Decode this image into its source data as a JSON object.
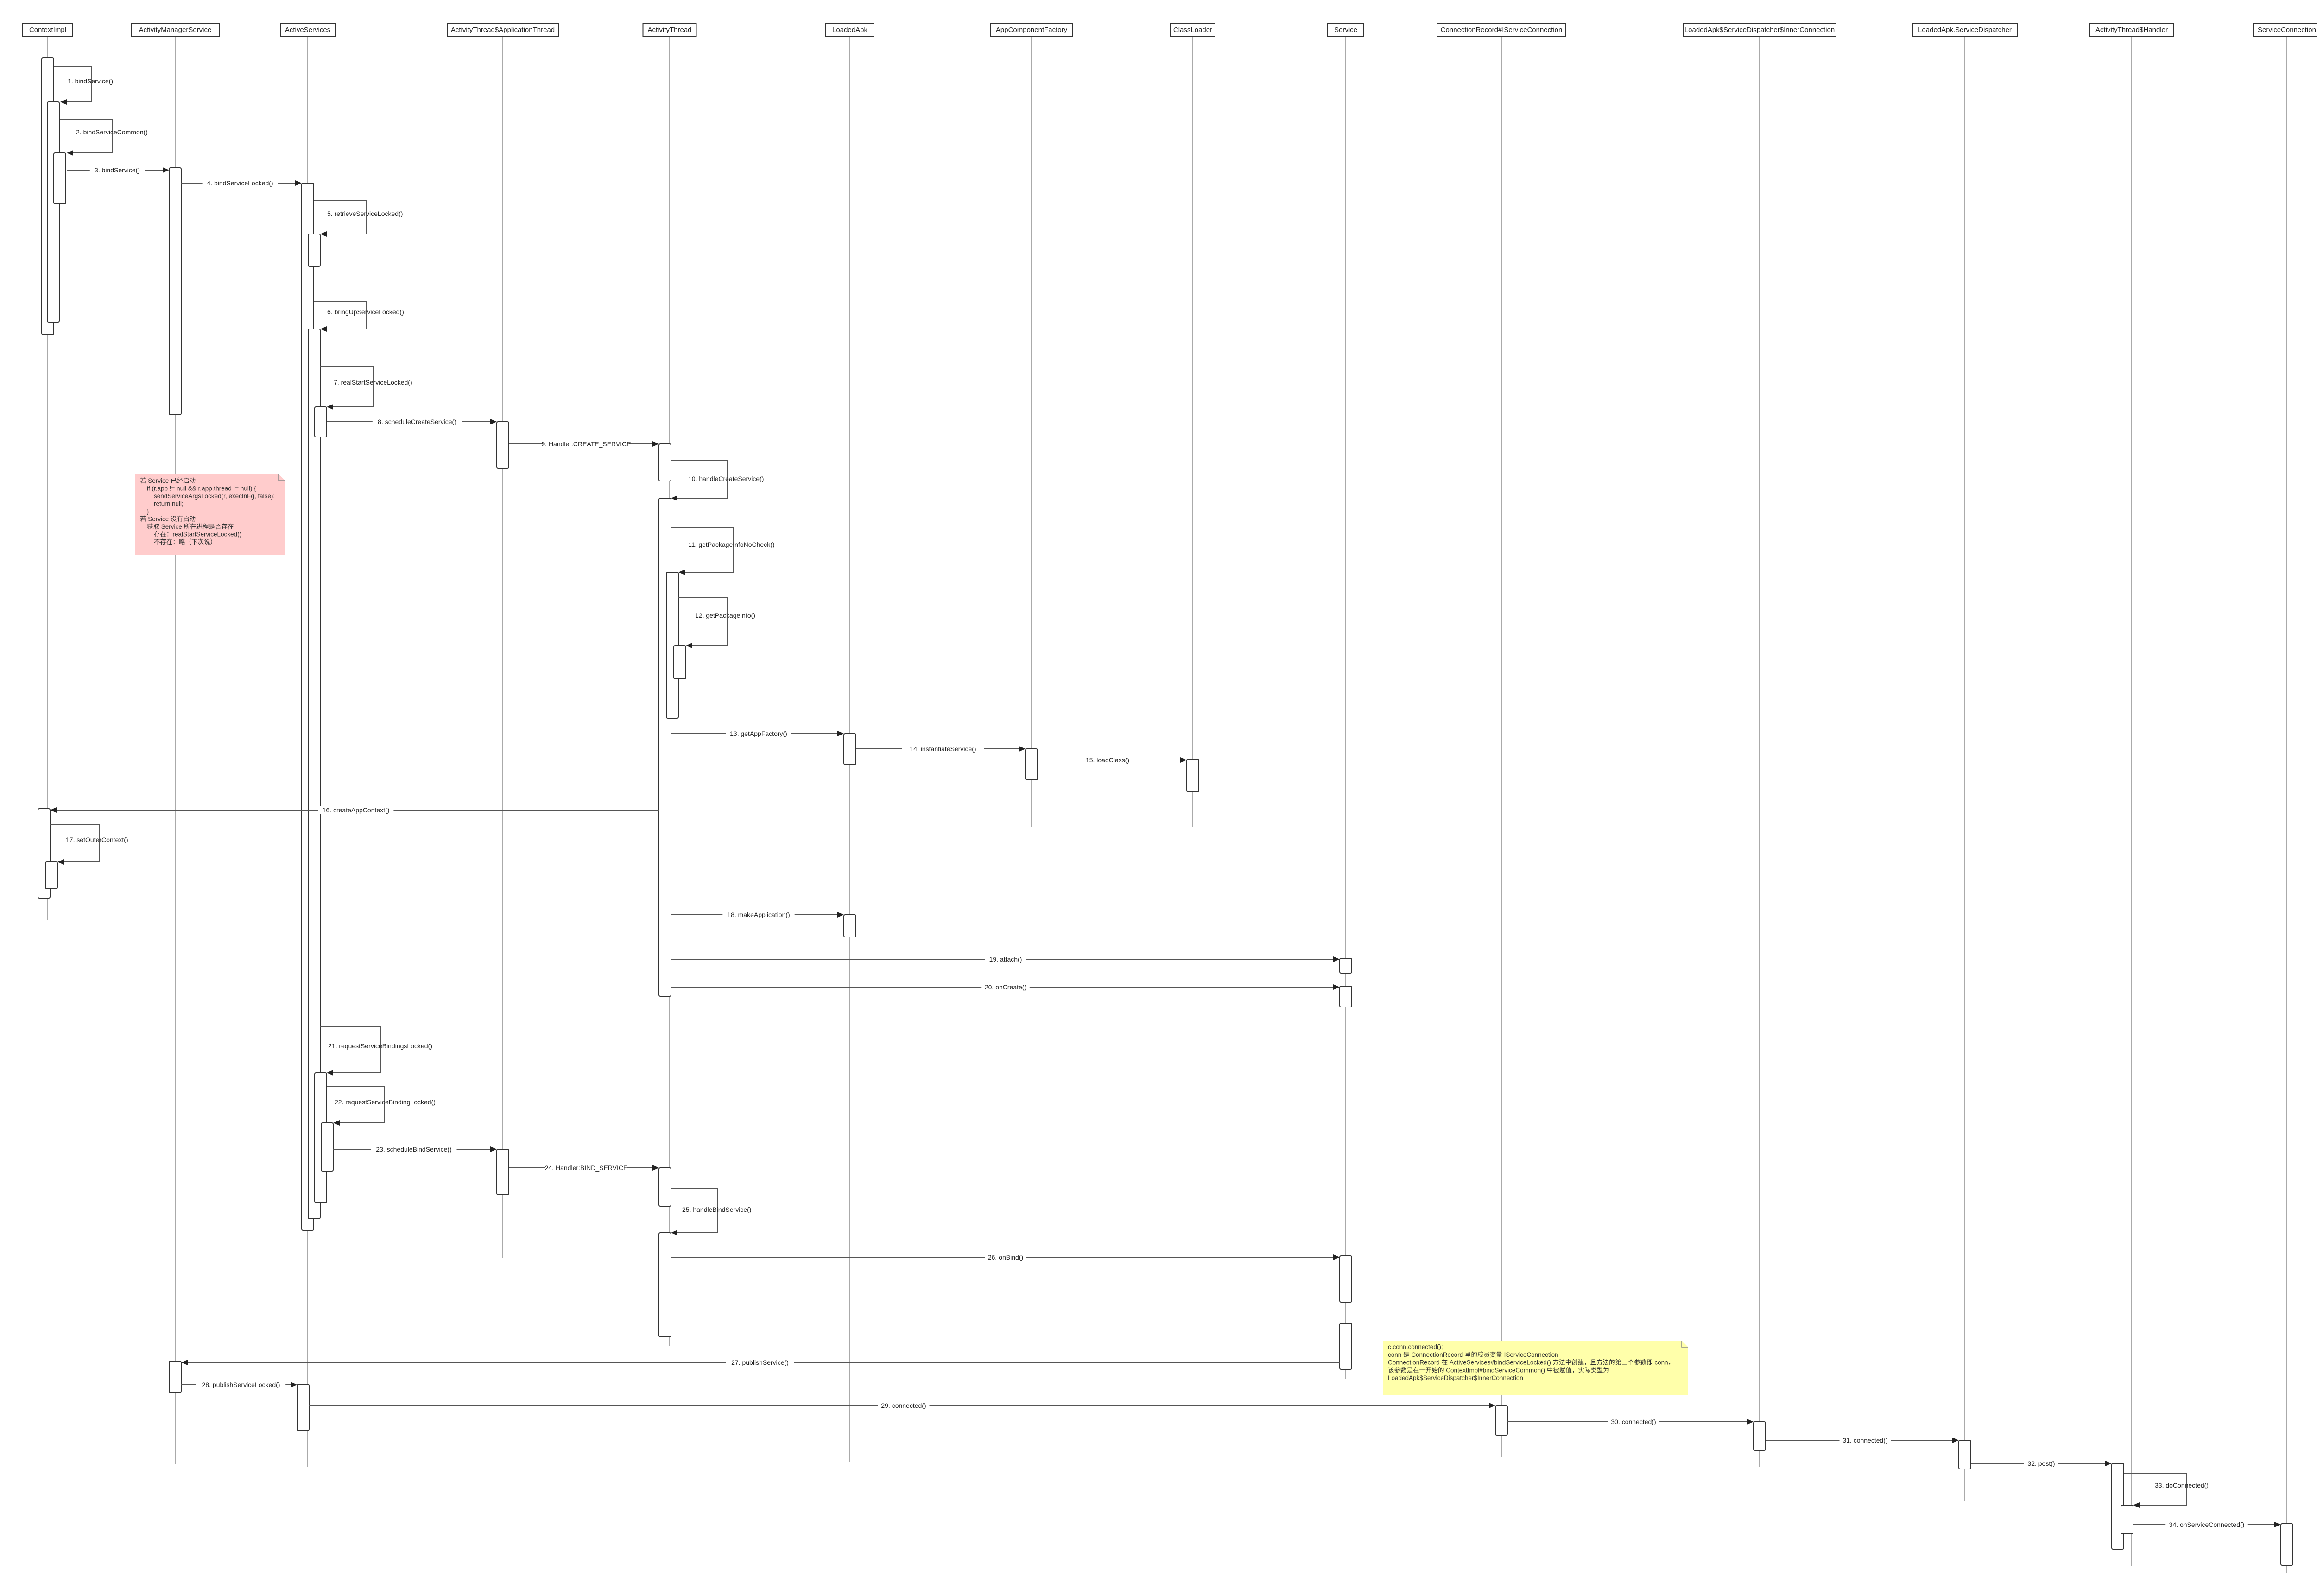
{
  "participants": [
    "ContextImpl",
    "ActivityManagerService",
    "ActiveServices",
    "ActivityThread$ApplicationThread",
    "ActivityThread",
    "LoadedApk",
    "AppComponentFactory",
    "ClassLoader",
    "Service",
    "ConnectionRecord#IServiceConnection",
    "LoadedApk$ServiceDispatcher$InnerConnection",
    "LoadedApk.ServiceDispatcher",
    "ActivityThread$Handler",
    "ServiceConnection"
  ],
  "messages": [
    {
      "label": "1. bindService()",
      "from": "ContextImpl",
      "to": "ContextImpl",
      "self": true
    },
    {
      "label": "2. bindServiceCommon()",
      "from": "ContextImpl",
      "to": "ContextImpl",
      "self": true
    },
    {
      "label": "3. bindService()",
      "from": "ContextImpl",
      "to": "ActivityManagerService"
    },
    {
      "label": "4. bindServiceLocked()",
      "from": "ActivityManagerService",
      "to": "ActiveServices"
    },
    {
      "label": "5. retrieveServiceLocked()",
      "from": "ActiveServices",
      "to": "ActiveServices",
      "self": true
    },
    {
      "label": "6. bringUpServiceLocked()",
      "from": "ActiveServices",
      "to": "ActiveServices",
      "self": true
    },
    {
      "label": "7. realStartServiceLocked()",
      "from": "ActiveServices",
      "to": "ActiveServices",
      "self": true
    },
    {
      "label": "8. scheduleCreateService()",
      "from": "ActiveServices",
      "to": "ActivityThread$ApplicationThread"
    },
    {
      "label": "9. Handler:CREATE_SERVICE",
      "from": "ActivityThread$ApplicationThread",
      "to": "ActivityThread"
    },
    {
      "label": "10. handleCreateService()",
      "from": "ActivityThread",
      "to": "ActivityThread",
      "self": true
    },
    {
      "label": "11. getPackageInfoNoCheck()",
      "from": "ActivityThread",
      "to": "ActivityThread",
      "self": true
    },
    {
      "label": "12. getPackageInfo()",
      "from": "ActivityThread",
      "to": "ActivityThread",
      "self": true
    },
    {
      "label": "13. getAppFactory()",
      "from": "ActivityThread",
      "to": "LoadedApk"
    },
    {
      "label": "14. instantiateService()",
      "from": "LoadedApk",
      "to": "AppComponentFactory"
    },
    {
      "label": "15. loadClass()",
      "from": "AppComponentFactory",
      "to": "ClassLoader"
    },
    {
      "label": "16. createAppContext()",
      "from": "ActivityThread",
      "to": "ContextImpl"
    },
    {
      "label": "17. setOuterContext()",
      "from": "ContextImpl",
      "to": "ContextImpl",
      "self": true
    },
    {
      "label": "18. makeApplication()",
      "from": "ActivityThread",
      "to": "LoadedApk"
    },
    {
      "label": "19. attach()",
      "from": "ActivityThread",
      "to": "Service"
    },
    {
      "label": "20. onCreate()",
      "from": "ActivityThread",
      "to": "Service"
    },
    {
      "label": "21. requestServiceBindingsLocked()",
      "from": "ActiveServices",
      "to": "ActiveServices",
      "self": true
    },
    {
      "label": "22. requestServiceBindingLocked()",
      "from": "ActiveServices",
      "to": "ActiveServices",
      "self": true
    },
    {
      "label": "23. scheduleBindService()",
      "from": "ActiveServices",
      "to": "ActivityThread$ApplicationThread"
    },
    {
      "label": "24. Handler:BIND_SERVICE",
      "from": "ActivityThread$ApplicationThread",
      "to": "ActivityThread"
    },
    {
      "label": "25. handleBindService()",
      "from": "ActivityThread",
      "to": "ActivityThread",
      "self": true
    },
    {
      "label": "26. onBind()",
      "from": "ActivityThread",
      "to": "Service"
    },
    {
      "label": "27. publishService()",
      "from": "Service",
      "to": "ActivityManagerService"
    },
    {
      "label": "28. publishServiceLocked()",
      "from": "ActivityManagerService",
      "to": "ActiveServices"
    },
    {
      "label": "29. connected()",
      "from": "ActiveServices",
      "to": "ConnectionRecord#IServiceConnection"
    },
    {
      "label": "30. connected()",
      "from": "ConnectionRecord#IServiceConnection",
      "to": "LoadedApk$ServiceDispatcher$InnerConnection"
    },
    {
      "label": "31. connected()",
      "from": "LoadedApk$ServiceDispatcher$InnerConnection",
      "to": "LoadedApk.ServiceDispatcher"
    },
    {
      "label": "32. post()",
      "from": "LoadedApk.ServiceDispatcher",
      "to": "ActivityThread$Handler"
    },
    {
      "label": "33. doConnected()",
      "from": "ActivityThread$Handler",
      "to": "ActivityThread$Handler",
      "self": true
    },
    {
      "label": "34. onServiceConnected()",
      "from": "ActivityThread$Handler",
      "to": "ServiceConnection"
    }
  ],
  "notes": [
    {
      "color": "#ffcccc",
      "lines": [
        "若 Service 已经启动",
        "    if (r.app != null && r.app.thread != null) {",
        "        sendServiceArgsLocked(r, execInFg, false);",
        "        return null;",
        "    }",
        "若 Service 没有启动",
        "    获取 Service 所在进程是否存在",
        "        存在：realStartServiceLocked()",
        "        不存在：略（下次说）"
      ]
    },
    {
      "color": "#ffffaa",
      "lines": [
        "c.conn.connected();",
        "conn 是 ConnectionRecord 里的成员变量 IServiceConnection",
        "ConnectionRecord 在 ActiveServices#bindServiceLocked() 方法中创建，且方法的第三个参数即 conn，",
        "该参数是在一开始的 ContextImpl#bindServiceCommon() 中被赋值，实际类型为",
        "LoadedApk$ServiceDispatcher$InnerConnection"
      ]
    }
  ],
  "colors": {
    "line": "#555555",
    "lifeline": "#aaaaaa",
    "box_fill": "#ffffff"
  }
}
